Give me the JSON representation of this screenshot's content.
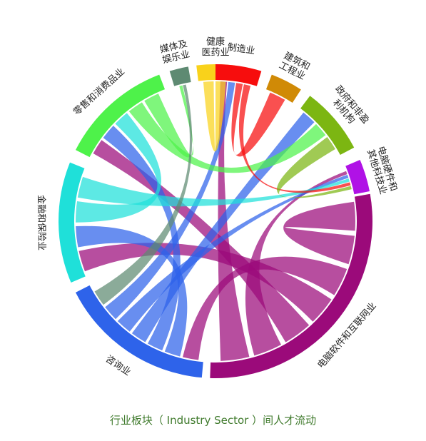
{
  "caption": "行业板块（ Industry Sector ）间人才流动",
  "sectors": [
    {
      "name": "电脑软件和互联网业",
      "color": "#9b0a7a",
      "lines": [
        "电脑软件和互联网业"
      ]
    },
    {
      "name": "咨询业",
      "color": "#2e63ea",
      "lines": [
        "咨询业"
      ]
    },
    {
      "name": "金融和保险业",
      "color": "#1fe0d9",
      "lines": [
        "金融和保险业"
      ]
    },
    {
      "name": "零售和消费品业",
      "color": "#4ef24a",
      "lines": [
        "零售和消费品业"
      ]
    },
    {
      "name": "媒体及娱乐业",
      "color": "#5e8a72",
      "lines": [
        "媒体及",
        "娱乐业"
      ]
    },
    {
      "name": "健康医药业",
      "color": "#f9d21b",
      "lines": [
        "健康",
        "医药业"
      ]
    },
    {
      "name": "制造业",
      "color": "#f70d0d",
      "lines": [
        "制造业"
      ]
    },
    {
      "name": "建筑和工程业",
      "color": "#d08a06",
      "lines": [
        "建筑和",
        "工程业"
      ]
    },
    {
      "name": "政府和非盈利机构",
      "color": "#7cb612",
      "lines": [
        "政府和非盈",
        "利机构"
      ]
    },
    {
      "name": "电脑硬件和其他科技业",
      "color": "#b012e6",
      "lines": [
        "电脑硬件和",
        "其他科技业"
      ]
    }
  ],
  "flows": [
    {
      "from": "电脑软件和互联网业",
      "to": "电脑软件和互联网业"
    },
    {
      "from": "电脑软件和互联网业",
      "to": "咨询业"
    },
    {
      "from": "电脑软件和互联网业",
      "to": "金融和保险业"
    },
    {
      "from": "电脑软件和互联网业",
      "to": "零售和消费品业"
    },
    {
      "from": "电脑软件和互联网业",
      "to": "电脑硬件和其他科技业"
    },
    {
      "from": "电脑软件和互联网业",
      "to": "制造业"
    },
    {
      "from": "咨询业",
      "to": "金融和保险业"
    },
    {
      "from": "咨询业",
      "to": "零售和消费品业"
    },
    {
      "from": "咨询业",
      "to": "政府和非盈利机构"
    },
    {
      "from": "咨询业",
      "to": "电脑硬件和其他科技业"
    },
    {
      "from": "咨询业",
      "to": "制造业"
    },
    {
      "from": "金融和保险业",
      "to": "零售和消费品业"
    },
    {
      "from": "金融和保险业",
      "to": "电脑硬件和其他科技业"
    },
    {
      "from": "零售和消费品业",
      "to": "政府和非盈利机构"
    },
    {
      "from": "零售和消费品业",
      "to": "媒体及娱乐业"
    },
    {
      "from": "健康医药业",
      "to": "健康医药业"
    },
    {
      "from": "制造业",
      "to": "建筑和工程业"
    },
    {
      "from": "制造业",
      "to": "电脑硬件和其他科技业"
    },
    {
      "from": "政府和非盈利机构",
      "to": "电脑硬件和其他科技业"
    },
    {
      "from": "媒体及娱乐业",
      "to": "咨询业"
    }
  ]
}
